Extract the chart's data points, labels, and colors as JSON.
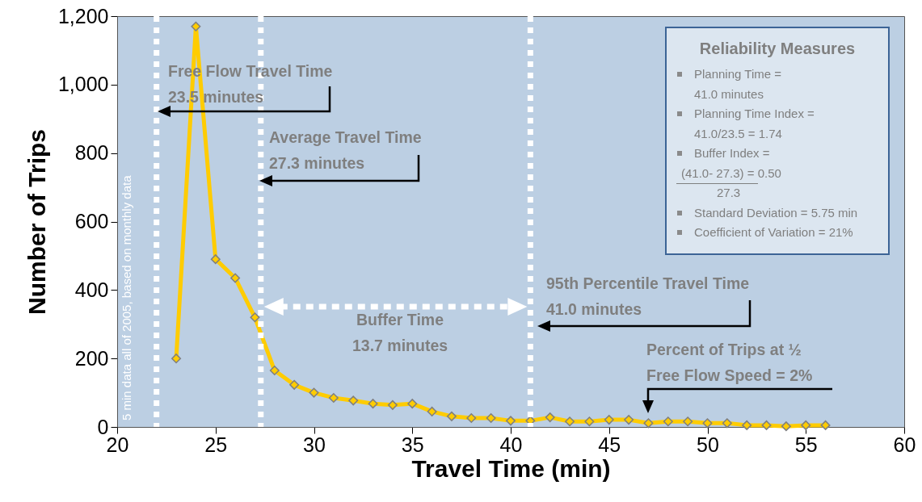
{
  "chart_data": {
    "type": "line",
    "xlabel": "Travel Time (min)",
    "ylabel": "Number of Trips",
    "x": [
      23,
      24,
      25,
      26,
      27,
      28,
      29,
      30,
      31,
      32,
      33,
      34,
      35,
      36,
      37,
      38,
      39,
      40,
      41,
      42,
      43,
      44,
      45,
      46,
      47,
      48,
      49,
      50,
      51,
      52,
      53,
      54,
      55,
      56
    ],
    "series": [
      {
        "color": "#ffcc00",
        "values": [
          200,
          1170,
          490,
          435,
          320,
          165,
          123,
          100,
          85,
          77,
          68,
          64,
          68,
          45,
          31,
          26,
          26,
          18,
          18,
          28,
          16,
          16,
          21,
          21,
          11,
          16,
          16,
          11,
          11,
          5,
          5,
          2,
          5,
          5
        ]
      }
    ],
    "marker": "diamond",
    "line_style": "solid",
    "grid": false,
    "xlim": [
      20,
      60
    ],
    "xticks": [
      20,
      25,
      30,
      35,
      40,
      45,
      50,
      55,
      60
    ],
    "ylim": [
      0,
      1200
    ],
    "yticks": [
      0,
      200,
      400,
      600,
      800,
      {
        "value": 1000,
        "label": "1,000"
      },
      {
        "value": 1200,
        "label": "1,200"
      }
    ],
    "ref_lines": [
      {
        "axis": "x",
        "value": 22,
        "color": "#ffffff",
        "line_style": "dotted"
      },
      {
        "axis": "x",
        "value": 27.3,
        "color": "#ffffff",
        "line_style": "dotted"
      },
      {
        "axis": "x",
        "value": 41,
        "color": "#ffffff",
        "line_style": "dotted"
      }
    ],
    "annotations": [
      "Free Flow Travel Time\n23.5 minutes",
      "Average Travel Time\n27.3 minutes",
      "Buffer Time\n13.7 minutes",
      "95th Percentile Travel Time\n41.0 minutes",
      "Percent of Trips at ½\nFree Flow Speed = 2%",
      "5 min data all of 2005, based on monthly data",
      "Reliability Measures",
      "Planning Time =\n41.0 minutes",
      "Planning Time Index =\n41.0/23.5 = 1.74",
      "Buffer Index =\n(41.0- 27.3) = 0.50\n27.3",
      "Standard Deviation = 5.75 min",
      "Coefficient of Variation = 21%"
    ]
  }
}
